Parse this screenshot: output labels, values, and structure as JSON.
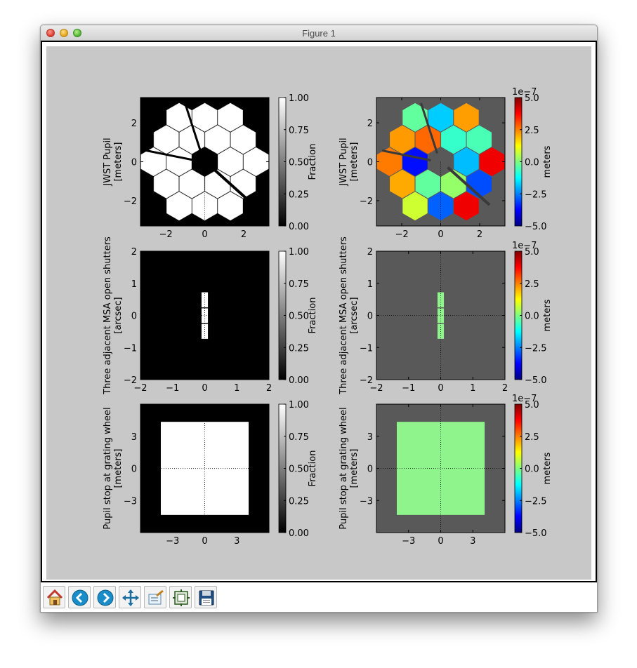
{
  "window": {
    "title": "Figure 1"
  },
  "toolbar": {
    "buttons": [
      {
        "name": "home-button",
        "icon": "home-icon"
      },
      {
        "name": "back-button",
        "icon": "arrow-left-icon"
      },
      {
        "name": "forward-button",
        "icon": "arrow-right-icon"
      },
      {
        "name": "pan-button",
        "icon": "move-icon"
      },
      {
        "name": "zoom-button",
        "icon": "zoom-rect-icon"
      },
      {
        "name": "configure-subplots-button",
        "icon": "subplots-icon"
      },
      {
        "name": "save-button",
        "icon": "floppy-disk-icon"
      }
    ]
  },
  "colors": {
    "figure_bg": "#c8c8c8",
    "masked_gray": "#595959",
    "opd_zero_green": "#90f48c",
    "jet_low": "#00007f",
    "jet_high": "#7f0000"
  },
  "chart_data": [
    {
      "type": "heatmap",
      "title": "",
      "ylabel": "JWST Pupil\n[meters]",
      "ylabel_lines": [
        "JWST Pupil",
        "[meters]"
      ],
      "xticks": [
        "−2",
        "0",
        "2"
      ],
      "yticks": [
        "2",
        "0",
        "−2"
      ],
      "xlim": [
        -3.3,
        3.3
      ],
      "ylim": [
        -3.3,
        3.3
      ],
      "cmap": "gray",
      "colorbar_label": "Fraction",
      "colorbar_ticks": [
        "1.00",
        "0.75",
        "0.50",
        "0.25",
        "0.00"
      ],
      "colorbar_range": [
        0,
        1
      ],
      "content": "JWST segmented primary mirror amplitude (18 hexagonal segments, struts), white = 1 inside pupil, black = 0 outside"
    },
    {
      "type": "heatmap",
      "title": "",
      "ylabel": "JWST Pupil\n[meters]",
      "ylabel_lines": [
        "JWST Pupil",
        "[meters]"
      ],
      "xticks": [
        "−2",
        "0",
        "2"
      ],
      "yticks": [
        "2",
        "0",
        "−2"
      ],
      "xlim": [
        -3.3,
        3.3
      ],
      "ylim": [
        -3.3,
        3.3
      ],
      "cmap": "jet",
      "colorbar_label": "meters",
      "colorbar_exponent": "1e−7",
      "colorbar_ticks": [
        "5.0",
        "2.5",
        "0.0",
        "−2.5",
        "−5.0"
      ],
      "colorbar_range": [
        -5e-07,
        5e-07
      ],
      "content": "Optical path difference across the 18 segments, values roughly −5e−7 to +5e−7 m, gray outside pupil"
    },
    {
      "type": "heatmap",
      "title": "",
      "ylabel": "Three adjacent MSA open shutters\n[arcsec]",
      "ylabel_lines": [
        "Three adjacent MSA open shutters",
        "[arcsec]"
      ],
      "xticks": [
        "−2",
        "−1",
        "0",
        "1",
        "2"
      ],
      "yticks": [
        "2",
        "1",
        "0",
        "−1",
        "−2"
      ],
      "xlim": [
        -2,
        2
      ],
      "ylim": [
        -2,
        2
      ],
      "cmap": "gray",
      "colorbar_label": "Fraction",
      "colorbar_ticks": [
        "1.00",
        "0.75",
        "0.50",
        "0.25",
        "0.00"
      ],
      "colorbar_range": [
        0,
        1
      ],
      "shutters": [
        {
          "x0": -0.1,
          "x1": 0.1,
          "y0": 0.25,
          "y1": 0.72
        },
        {
          "x0": -0.1,
          "x1": 0.1,
          "y0": -0.24,
          "y1": 0.22
        },
        {
          "x0": -0.1,
          "x1": 0.1,
          "y0": -0.73,
          "y1": -0.27
        }
      ]
    },
    {
      "type": "heatmap",
      "title": "",
      "ylabel": "Three adjacent MSA open shutters\n[arcsec]",
      "ylabel_lines": [
        "Three adjacent MSA open shutters",
        "[arcsec]"
      ],
      "xticks": [
        "−2",
        "−1",
        "0",
        "1",
        "2"
      ],
      "yticks": [
        "2",
        "1",
        "0",
        "−1",
        "−2"
      ],
      "xlim": [
        -2,
        2
      ],
      "ylim": [
        -2,
        2
      ],
      "cmap": "jet",
      "colorbar_label": "meters",
      "colorbar_exponent": "1e−7",
      "colorbar_ticks": [
        "5.0",
        "2.5",
        "0.0",
        "−2.5",
        "−5.0"
      ],
      "colorbar_range": [
        -5e-07,
        5e-07
      ],
      "opd_value": 0.0
    },
    {
      "type": "heatmap",
      "title": "",
      "ylabel": "Pupil stop at grating wheel\n[meters]",
      "ylabel_lines": [
        "Pupil stop at grating wheel",
        "[meters]"
      ],
      "xticks": [
        "−3",
        "0",
        "3"
      ],
      "yticks": [
        "3",
        "0",
        "−3"
      ],
      "xlim": [
        -6,
        6
      ],
      "ylim": [
        -6,
        6
      ],
      "cmap": "gray",
      "colorbar_label": "Fraction",
      "colorbar_ticks": [
        "1.00",
        "0.75",
        "0.50",
        "0.25",
        "0.00"
      ],
      "colorbar_range": [
        0,
        1
      ],
      "stop": {
        "x0": -4.1,
        "x1": 4.1,
        "y0": -4.35,
        "y1": 4.35
      }
    },
    {
      "type": "heatmap",
      "title": "",
      "ylabel": "Pupil stop at grating wheel\n[meters]",
      "ylabel_lines": [
        "Pupil stop at grating wheel",
        "[meters]"
      ],
      "xticks": [
        "−3",
        "0",
        "3"
      ],
      "yticks": [
        "3",
        "0",
        "−3"
      ],
      "xlim": [
        -6,
        6
      ],
      "ylim": [
        -6,
        6
      ],
      "cmap": "jet",
      "colorbar_label": "meters",
      "colorbar_exponent": "1e−7",
      "colorbar_ticks": [
        "5.0",
        "2.5",
        "0.0",
        "−2.5",
        "−5.0"
      ],
      "colorbar_range": [
        -5e-07,
        5e-07
      ],
      "stop": {
        "x0": -4.1,
        "x1": 4.1,
        "y0": -4.35,
        "y1": 4.35
      },
      "opd_value": 0.0
    }
  ]
}
